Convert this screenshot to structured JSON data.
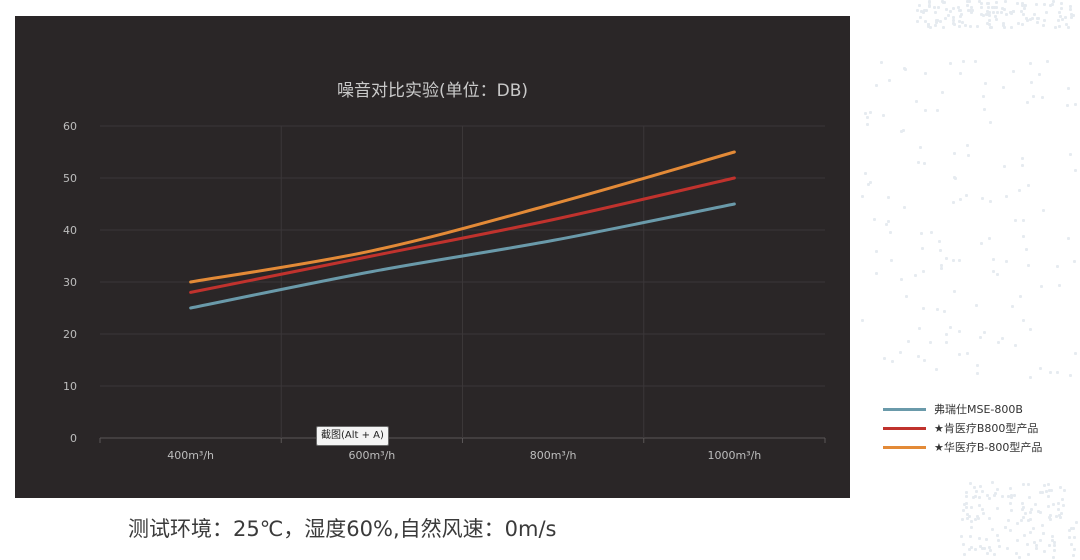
{
  "chart_data": {
    "type": "line",
    "title": "噪音对比实验(单位：DB)",
    "categories": [
      "400m³/h",
      "600m³/h",
      "800m³/h",
      "1000m³/h"
    ],
    "ylim": [
      0,
      60
    ],
    "yticks": [
      0,
      10,
      20,
      30,
      40,
      50,
      60
    ],
    "grid": true,
    "legend_position": "bottom-right",
    "series": [
      {
        "name": "弗瑞仕MSE-800B",
        "color": "#6a9aaa",
        "values": [
          25,
          32,
          38,
          45
        ]
      },
      {
        "name": "★肯医疗B800型产品",
        "color": "#c0322d",
        "values": [
          28,
          35,
          42,
          50
        ]
      },
      {
        "name": "★华医疗B-800型产品",
        "color": "#e38a37",
        "values": [
          30,
          36,
          45,
          55
        ]
      }
    ]
  },
  "tooltip": {
    "text": "截图(Alt + A)"
  },
  "footnote": "测试环境：25℃，湿度60%,自然风速：0m/s"
}
